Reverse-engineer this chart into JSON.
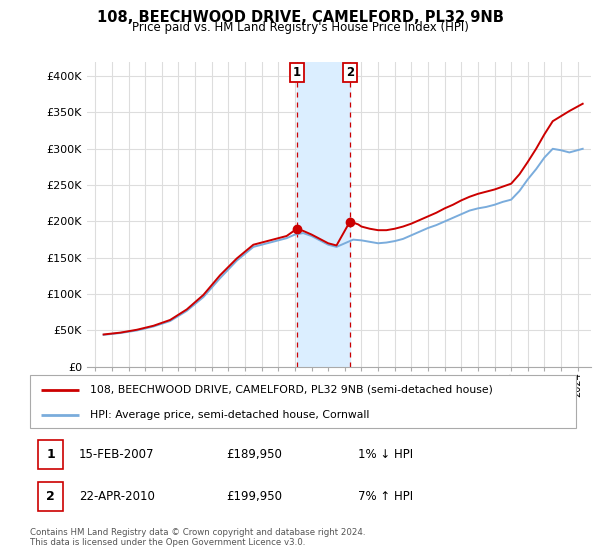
{
  "title": "108, BEECHWOOD DRIVE, CAMELFORD, PL32 9NB",
  "subtitle": "Price paid vs. HM Land Registry's House Price Index (HPI)",
  "legend_line1": "108, BEECHWOOD DRIVE, CAMELFORD, PL32 9NB (semi-detached house)",
  "legend_line2": "HPI: Average price, semi-detached house, Cornwall",
  "transaction1_date": "15-FEB-2007",
  "transaction1_price": "£189,950",
  "transaction1_hpi": "1% ↓ HPI",
  "transaction2_date": "22-APR-2010",
  "transaction2_price": "£199,950",
  "transaction2_hpi": "7% ↑ HPI",
  "footnote": "Contains HM Land Registry data © Crown copyright and database right 2024.\nThis data is licensed under the Open Government Licence v3.0.",
  "property_color": "#cc0000",
  "hpi_color": "#7aacdc",
  "highlight_color": "#dbeeff",
  "transaction1_x": 2007.12,
  "transaction2_x": 2010.31,
  "ylim": [
    0,
    420000
  ],
  "xlim_start": 1994.5,
  "xlim_end": 2024.8,
  "yticks": [
    0,
    50000,
    100000,
    150000,
    200000,
    250000,
    300000,
    350000,
    400000
  ],
  "ytick_labels": [
    "£0",
    "£50K",
    "£100K",
    "£150K",
    "£200K",
    "£250K",
    "£300K",
    "£350K",
    "£400K"
  ],
  "years_hpi": [
    1995.5,
    1996.5,
    1997.5,
    1998.5,
    1999.5,
    2000.5,
    2001.5,
    2002.5,
    2003.5,
    2004.5,
    2005.5,
    2006.5,
    2007.0,
    2007.5,
    2008.0,
    2008.5,
    2009.0,
    2009.5,
    2010.0,
    2010.5,
    2011.0,
    2011.5,
    2012.0,
    2012.5,
    2013.0,
    2013.5,
    2014.0,
    2014.5,
    2015.0,
    2015.5,
    2016.0,
    2016.5,
    2017.0,
    2017.5,
    2018.0,
    2018.5,
    2019.0,
    2019.5,
    2020.0,
    2020.5,
    2021.0,
    2021.5,
    2022.0,
    2022.5,
    2023.0,
    2023.5,
    2024.3
  ],
  "hpi_values": [
    44000,
    46500,
    50000,
    55500,
    63000,
    77000,
    96000,
    122000,
    146000,
    165000,
    171000,
    177000,
    182000,
    184000,
    180000,
    174000,
    168000,
    165000,
    170000,
    175000,
    174000,
    172000,
    170000,
    171000,
    173000,
    176000,
    181000,
    186000,
    191000,
    195000,
    200000,
    205000,
    210000,
    215000,
    218000,
    220000,
    223000,
    227000,
    230000,
    242000,
    258000,
    272000,
    288000,
    300000,
    298000,
    295000,
    300000
  ],
  "years_prop": [
    1995.5,
    1996.5,
    1997.5,
    1998.5,
    1999.5,
    2000.5,
    2001.5,
    2002.5,
    2003.5,
    2004.5,
    2005.5,
    2006.5,
    2007.12,
    2007.5,
    2008.0,
    2008.5,
    2009.0,
    2009.5,
    2010.31,
    2010.8,
    2011.0,
    2011.5,
    2012.0,
    2012.5,
    2013.0,
    2013.5,
    2014.0,
    2014.5,
    2015.0,
    2015.5,
    2016.0,
    2016.5,
    2017.0,
    2017.5,
    2018.0,
    2018.5,
    2019.0,
    2019.5,
    2020.0,
    2020.5,
    2021.0,
    2021.5,
    2022.0,
    2022.5,
    2023.0,
    2023.5,
    2024.3
  ],
  "prop_values": [
    44500,
    47000,
    51000,
    56500,
    64500,
    79000,
    99000,
    126000,
    149000,
    168000,
    174000,
    180000,
    189950,
    187000,
    182000,
    176000,
    170000,
    167000,
    199950,
    196000,
    193000,
    190000,
    188000,
    188000,
    190000,
    193000,
    197000,
    202000,
    207000,
    212000,
    218000,
    223000,
    229000,
    234000,
    238000,
    241000,
    244000,
    248000,
    252000,
    265000,
    282000,
    300000,
    320000,
    338000,
    345000,
    352000,
    362000
  ]
}
